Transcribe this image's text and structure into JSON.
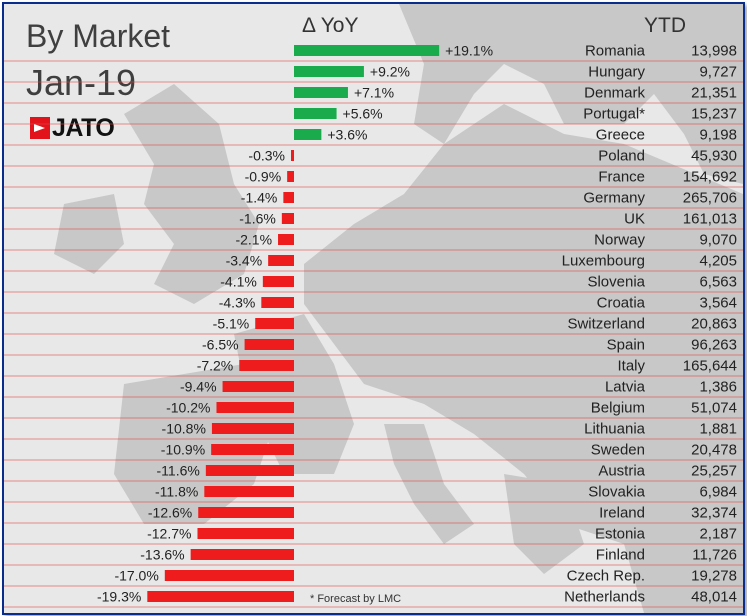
{
  "header": {
    "title": "By Market",
    "subtitle": "Jan-19",
    "logo_text": "JATO",
    "col_yoy": "Δ YoY",
    "col_ytd": "YTD"
  },
  "footnote": "* Forecast by LMC",
  "colors": {
    "positive": "#1aab4d",
    "negative": "#ee1c1c",
    "rule": "#e04848",
    "map": "#c9c9c9"
  },
  "chart_data": {
    "type": "bar",
    "title": "By Market",
    "subtitle": "Jan-19",
    "categories": [
      "Romania",
      "Hungary",
      "Denmark",
      "Portugal*",
      "Greece",
      "Poland",
      "France",
      "Germany",
      "UK",
      "Norway",
      "Luxembourg",
      "Slovenia",
      "Croatia",
      "Switzerland",
      "Spain",
      "Italy",
      "Latvia",
      "Belgium",
      "Lithuania",
      "Sweden",
      "Austria",
      "Slovakia",
      "Ireland",
      "Estonia",
      "Finland",
      "Czech Rep.",
      "Netherlands"
    ],
    "series": [
      {
        "name": "Δ YoY",
        "values": [
          19.1,
          9.2,
          7.1,
          5.6,
          3.6,
          -0.3,
          -0.9,
          -1.4,
          -1.6,
          -2.1,
          -3.4,
          -4.1,
          -4.3,
          -5.1,
          -6.5,
          -7.2,
          -9.4,
          -10.2,
          -10.8,
          -10.9,
          -11.6,
          -11.8,
          -12.6,
          -12.7,
          -13.6,
          -17.0,
          -19.3
        ]
      },
      {
        "name": "YTD",
        "values": [
          13998,
          9727,
          21351,
          15237,
          9198,
          45930,
          154692,
          265706,
          161013,
          9070,
          4205,
          6563,
          3564,
          20863,
          96263,
          165644,
          1386,
          51074,
          1881,
          20478,
          25257,
          6984,
          32374,
          2187,
          11726,
          19278,
          48014
        ]
      }
    ],
    "yoy_labels": [
      "+19.1%",
      "+9.2%",
      "+7.1%",
      "+5.6%",
      "+3.6%",
      "-0.3%",
      "-0.9%",
      "-1.4%",
      "-1.6%",
      "-2.1%",
      "-3.4%",
      "-4.1%",
      "-4.3%",
      "-5.1%",
      "-6.5%",
      "-7.2%",
      "-9.4%",
      "-10.2%",
      "-10.8%",
      "-10.9%",
      "-11.6%",
      "-11.8%",
      "-12.6%",
      "-12.7%",
      "-13.6%",
      "-17.0%",
      "-19.3%"
    ],
    "ytd_labels": [
      "13,998",
      "9,727",
      "21,351",
      "15,237",
      "9,198",
      "45,930",
      "154,692",
      "265,706",
      "161,013",
      "9,070",
      "4,205",
      "6,563",
      "3,564",
      "20,863",
      "96,263",
      "165,644",
      "1,386",
      "51,074",
      "1,881",
      "20,478",
      "25,257",
      "6,984",
      "32,374",
      "2,187",
      "11,726",
      "19,278",
      "48,014"
    ]
  }
}
